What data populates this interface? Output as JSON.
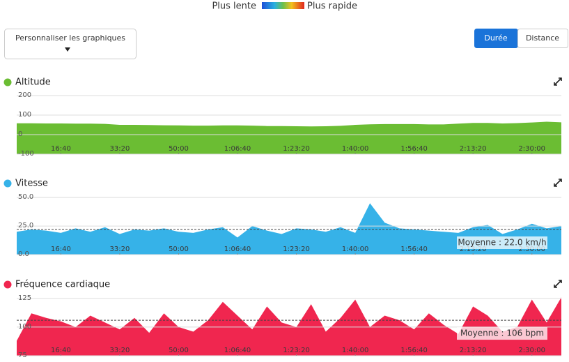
{
  "legend": {
    "slow": "Plus lente",
    "fast": "Plus rapide"
  },
  "customize_button": "Personnaliser les graphiques",
  "toggle": [
    "Durée",
    "Distance"
  ],
  "chart_data": [
    {
      "type": "area",
      "title": "Altitude",
      "color": "#6bbd33",
      "x": [
        250,
        500,
        750,
        1000,
        1250,
        1500,
        1750,
        2000,
        2250,
        2500,
        2750,
        3000,
        3250,
        3500,
        3750,
        4000,
        4250,
        4500,
        4750,
        5000,
        5250,
        5500,
        5750,
        6000,
        6250,
        6500,
        6750,
        7000,
        7250,
        7500,
        7750,
        8000,
        8250,
        8500,
        8750,
        9000,
        9250,
        9500
      ],
      "values": [
        58,
        58,
        57,
        57,
        56,
        56,
        55,
        50,
        50,
        49,
        48,
        47,
        46,
        46,
        47,
        47,
        46,
        44,
        44,
        43,
        42,
        43,
        45,
        50,
        53,
        54,
        54,
        54,
        52,
        52,
        56,
        60,
        60,
        57,
        59,
        62,
        66,
        63
      ],
      "xlim": [
        250,
        9500
      ],
      "xticks": [
        {
          "value": 1000,
          "label": "16:40"
        },
        {
          "value": 2000,
          "label": "33:20"
        },
        {
          "value": 3000,
          "label": "50:00"
        },
        {
          "value": 4000,
          "label": "1:06:40"
        },
        {
          "value": 5000,
          "label": "1:23:20"
        },
        {
          "value": 6000,
          "label": "1:40:00"
        },
        {
          "value": 7000,
          "label": "1:56:40"
        },
        {
          "value": 8000,
          "label": "2:13:20"
        },
        {
          "value": 9000,
          "label": "2:30:00"
        }
      ],
      "ylim": [
        -100,
        200
      ],
      "yticks": [
        -100,
        0,
        100,
        200
      ],
      "grid": true
    },
    {
      "type": "area",
      "title": "Vitesse",
      "color": "#36b2e8",
      "x": [
        250,
        500,
        750,
        1000,
        1250,
        1500,
        1750,
        2000,
        2250,
        2500,
        2750,
        3000,
        3250,
        3500,
        3750,
        4000,
        4250,
        4500,
        4750,
        5000,
        5250,
        5500,
        5750,
        6000,
        6250,
        6500,
        6750,
        7000,
        7250,
        7500,
        7750,
        8000,
        8250,
        8500,
        8750,
        9000,
        9250,
        9500
      ],
      "values": [
        20,
        22,
        21,
        19,
        23,
        20,
        24,
        18,
        22,
        21,
        23,
        20,
        19,
        22,
        24,
        15,
        25,
        21,
        18,
        23,
        22,
        20,
        24,
        19,
        45,
        28,
        23,
        22,
        21,
        20,
        19,
        24,
        26,
        18,
        22,
        27,
        23,
        25
      ],
      "xlim": [
        250,
        9500
      ],
      "xticks": [
        {
          "value": 1000,
          "label": "16:40"
        },
        {
          "value": 2000,
          "label": "33:20"
        },
        {
          "value": 3000,
          "label": "50:00"
        },
        {
          "value": 4000,
          "label": "1:06:40"
        },
        {
          "value": 5000,
          "label": "1:23:20"
        },
        {
          "value": 6000,
          "label": "1:40:00"
        },
        {
          "value": 7000,
          "label": "1:56:40"
        },
        {
          "value": 8000,
          "label": "2:13:20"
        },
        {
          "value": 9000,
          "label": "2:30:00"
        }
      ],
      "ylim": [
        0,
        55
      ],
      "yticks": [
        {
          "value": 0,
          "label": "0.0"
        },
        {
          "value": 25,
          "label": "25.0"
        },
        {
          "value": 50,
          "label": "50.0"
        }
      ],
      "grid": true,
      "average": 22,
      "average_label": "Moyenne : 22.0 km/h"
    },
    {
      "type": "area",
      "title": "Fréquence cardiaque",
      "color": "#f0264f",
      "x": [
        250,
        500,
        750,
        1000,
        1250,
        1500,
        1750,
        2000,
        2250,
        2500,
        2750,
        3000,
        3250,
        3500,
        3750,
        4000,
        4250,
        4500,
        4750,
        5000,
        5250,
        5500,
        5750,
        6000,
        6250,
        6500,
        6750,
        7000,
        7250,
        7500,
        7750,
        8000,
        8250,
        8500,
        8750,
        9000,
        9250,
        9500
      ],
      "values": [
        88,
        112,
        108,
        105,
        100,
        110,
        104,
        98,
        108,
        95,
        112,
        100,
        96,
        106,
        122,
        110,
        98,
        118,
        104,
        100,
        120,
        96,
        108,
        124,
        100,
        110,
        106,
        98,
        112,
        102,
        94,
        118,
        110,
        96,
        100,
        124,
        104,
        126
      ],
      "xlim": [
        250,
        9500
      ],
      "xticks": [
        {
          "value": 1000,
          "label": "16:40"
        },
        {
          "value": 2000,
          "label": "33:20"
        },
        {
          "value": 3000,
          "label": "50:00"
        },
        {
          "value": 4000,
          "label": "1:06:40"
        },
        {
          "value": 5000,
          "label": "1:23:20"
        },
        {
          "value": 6000,
          "label": "1:40:00"
        },
        {
          "value": 7000,
          "label": "1:56:40"
        },
        {
          "value": 8000,
          "label": "2:13:20"
        },
        {
          "value": 9000,
          "label": "2:30:00"
        }
      ],
      "ylim": [
        75,
        131
      ],
      "yticks": [
        75,
        100,
        125
      ],
      "grid": true,
      "average": 106,
      "average_label": "Moyenne : 106 bpm"
    }
  ]
}
